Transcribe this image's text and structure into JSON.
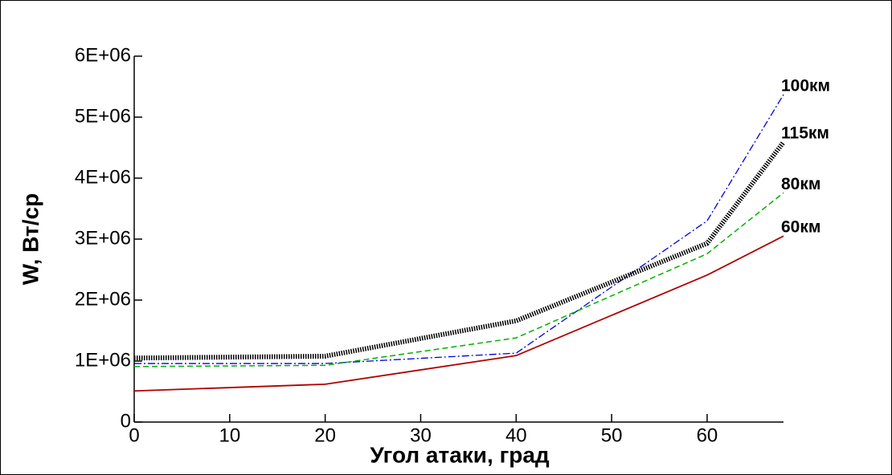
{
  "chart_data": {
    "type": "line",
    "x_label": "Угол атаки, град",
    "y_label": "W, Вт/ср",
    "x": [
      0,
      20,
      40,
      60,
      68
    ],
    "xlim": [
      0,
      68
    ],
    "xticks": [
      0,
      10,
      20,
      30,
      40,
      50,
      60
    ],
    "ylim": [
      0,
      6000000
    ],
    "yticks": [
      0,
      {
        "value": 1000000,
        "label": "1E+06"
      },
      {
        "value": 2000000,
        "label": "2E+06"
      },
      {
        "value": 3000000,
        "label": "3E+06"
      },
      {
        "value": 4000000,
        "label": "4E+06"
      },
      {
        "value": 5000000,
        "label": "5E+06"
      },
      {
        "value": 6000000,
        "label": "6E+06"
      }
    ],
    "series": [
      {
        "name": "100км",
        "color": "#0000e0",
        "style": "dashdot",
        "values": [
          960000,
          960000,
          1130000,
          3300000,
          5370000
        ]
      },
      {
        "name": "115км",
        "color": "#000000",
        "style": "hatched",
        "values": [
          1050000,
          1080000,
          1660000,
          2930000,
          4590000
        ]
      },
      {
        "name": "80км",
        "color": "#00b000",
        "style": "dashed",
        "values": [
          910000,
          930000,
          1380000,
          2760000,
          3760000
        ]
      },
      {
        "name": "60км",
        "color": "#b00000",
        "style": "solid",
        "values": [
          510000,
          620000,
          1090000,
          2410000,
          3050000
        ]
      }
    ]
  }
}
